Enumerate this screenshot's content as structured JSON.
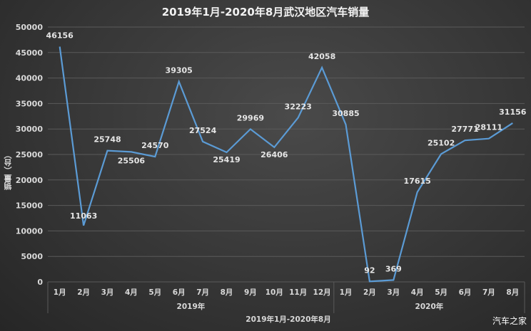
{
  "title": "2019年1月-2020年8月武汉地区汽车销量",
  "watermark": "汽车之家",
  "colors": {
    "line": "#5b9bd5",
    "grid": "#5a5a5a",
    "text": "#d9d9d9",
    "label": "#e6e6e6"
  },
  "chart_data": {
    "type": "line",
    "title": "2019年1月-2020年8月武汉地区汽车销量",
    "xlabel": "2019年1月-2020年8月",
    "ylabel": "销量（台）",
    "ylim": [
      0,
      50000
    ],
    "yticks": [
      0,
      5000,
      10000,
      15000,
      20000,
      25000,
      30000,
      35000,
      40000,
      45000,
      50000
    ],
    "grid": true,
    "legend": "none",
    "categories": [
      "1月",
      "2月",
      "3月",
      "4月",
      "5月",
      "6月",
      "7月",
      "8月",
      "9月",
      "10月",
      "11月",
      "12月",
      "1月",
      "2月",
      "3月",
      "4月",
      "5月",
      "6月",
      "7月",
      "8月"
    ],
    "groups": [
      {
        "label": "2019年",
        "start": 0,
        "count": 12
      },
      {
        "label": "2020年",
        "start": 12,
        "count": 8
      }
    ],
    "series": [
      {
        "name": "销量",
        "values": [
          46156,
          11063,
          25748,
          25506,
          24570,
          39305,
          27524,
          25419,
          29969,
          26406,
          32223,
          42058,
          30885,
          92,
          369,
          17615,
          25102,
          27771,
          28111,
          31156
        ]
      }
    ]
  }
}
